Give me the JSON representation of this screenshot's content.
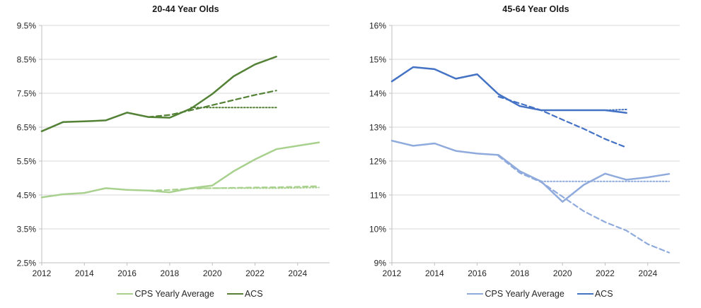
{
  "chart_data": [
    {
      "type": "line",
      "title": "20-44 Year Olds",
      "ylim": [
        2.5,
        9.5
      ],
      "xlim": [
        2012,
        2025.5
      ],
      "grid": true,
      "legend_position": "bottom",
      "y_ticks": [
        {
          "value": 9.5,
          "label": "9.5%"
        },
        {
          "value": 8.5,
          "label": "8.5%"
        },
        {
          "value": 7.5,
          "label": "7.5%"
        },
        {
          "value": 6.5,
          "label": "6.5%"
        },
        {
          "value": 5.5,
          "label": "5.5%"
        },
        {
          "value": 4.5,
          "label": "4.5%"
        },
        {
          "value": 3.5,
          "label": "3.5%"
        },
        {
          "value": 2.5,
          "label": "2.5%"
        }
      ],
      "x_ticks": [
        {
          "value": 2012,
          "label": "2012"
        },
        {
          "value": 2014,
          "label": "2014"
        },
        {
          "value": 2016,
          "label": "2016"
        },
        {
          "value": 2018,
          "label": "2018"
        },
        {
          "value": 2020,
          "label": "2020"
        },
        {
          "value": 2022,
          "label": "2022"
        },
        {
          "value": 2024,
          "label": "2024"
        }
      ],
      "series": [
        {
          "id": "cps-dotted-flat",
          "style": "dotted",
          "color": "#a9d18e",
          "x": [
            2019,
            2020,
            2021,
            2022,
            2023,
            2024,
            2025
          ],
          "y": [
            4.7,
            4.7,
            4.7,
            4.7,
            4.7,
            4.71,
            4.72
          ]
        },
        {
          "id": "cps-dashed-trend",
          "style": "dashed",
          "color": "#a9d18e",
          "x": [
            2017,
            2018,
            2019,
            2020,
            2021,
            2022,
            2023,
            2024,
            2025
          ],
          "y": [
            4.63,
            4.65,
            4.69,
            4.7,
            4.71,
            4.72,
            4.73,
            4.74,
            4.76
          ]
        },
        {
          "id": "cps-yearly-average",
          "label": "CPS Yearly Average",
          "style": "solid",
          "color": "#a9d18e",
          "x": [
            2012,
            2013,
            2014,
            2015,
            2016,
            2017,
            2018,
            2019,
            2020,
            2021,
            2022,
            2023,
            2024,
            2025
          ],
          "y": [
            4.43,
            4.52,
            4.56,
            4.7,
            4.65,
            4.63,
            4.58,
            4.7,
            4.78,
            5.2,
            5.55,
            5.85,
            5.95,
            6.05
          ]
        },
        {
          "id": "acs-dotted-flat",
          "style": "dotted",
          "color": "#538135",
          "x": [
            2019,
            2020,
            2021,
            2022,
            2023
          ],
          "y": [
            7.08,
            7.08,
            7.08,
            7.08,
            7.08
          ]
        },
        {
          "id": "acs-dashed-trend",
          "style": "dashed",
          "color": "#538135",
          "x": [
            2017,
            2018,
            2019,
            2020,
            2021,
            2022,
            2023
          ],
          "y": [
            6.8,
            6.86,
            7.0,
            7.15,
            7.3,
            7.45,
            7.58
          ]
        },
        {
          "id": "acs",
          "label": "ACS",
          "style": "solid",
          "color": "#538135",
          "x": [
            2012,
            2013,
            2014,
            2015,
            2016,
            2017,
            2018,
            2019,
            2020,
            2021,
            2022,
            2023
          ],
          "y": [
            6.38,
            6.65,
            6.67,
            6.7,
            6.93,
            6.8,
            6.78,
            7.05,
            7.48,
            8.0,
            8.35,
            8.58
          ]
        }
      ],
      "legend": [
        {
          "label": "CPS Yearly Average",
          "color": "#a9d18e"
        },
        {
          "label": "ACS",
          "color": "#538135"
        }
      ]
    },
    {
      "type": "line",
      "title": "45-64 Year Olds",
      "ylim": [
        9,
        16
      ],
      "xlim": [
        2012,
        2025.5
      ],
      "grid": true,
      "legend_position": "bottom",
      "y_ticks": [
        {
          "value": 16,
          "label": "16%"
        },
        {
          "value": 15,
          "label": "15%"
        },
        {
          "value": 14,
          "label": "14%"
        },
        {
          "value": 13,
          "label": "13%"
        },
        {
          "value": 12,
          "label": "12%"
        },
        {
          "value": 11,
          "label": "11%"
        },
        {
          "value": 10,
          "label": "10%"
        },
        {
          "value": 9,
          "label": "9%"
        }
      ],
      "x_ticks": [
        {
          "value": 2012,
          "label": "2012"
        },
        {
          "value": 2014,
          "label": "2014"
        },
        {
          "value": 2016,
          "label": "2016"
        },
        {
          "value": 2018,
          "label": "2018"
        },
        {
          "value": 2020,
          "label": "2020"
        },
        {
          "value": 2022,
          "label": "2022"
        },
        {
          "value": 2024,
          "label": "2024"
        }
      ],
      "series": [
        {
          "id": "cps-dotted-flat",
          "style": "dotted",
          "color": "#8faadc",
          "x": [
            2019,
            2020,
            2021,
            2022,
            2023,
            2024,
            2025
          ],
          "y": [
            11.4,
            11.4,
            11.4,
            11.4,
            11.4,
            11.4,
            11.4
          ]
        },
        {
          "id": "cps-dashed-trend",
          "style": "dashed",
          "color": "#8faadc",
          "x": [
            2017,
            2018,
            2019,
            2020,
            2021,
            2022,
            2023,
            2024,
            2025
          ],
          "y": [
            12.15,
            11.65,
            11.38,
            10.95,
            10.52,
            10.2,
            9.95,
            9.55,
            9.3
          ]
        },
        {
          "id": "cps-yearly-average",
          "label": "CPS Yearly Average",
          "style": "solid",
          "color": "#8faadc",
          "x": [
            2012,
            2013,
            2014,
            2015,
            2016,
            2017,
            2018,
            2019,
            2020,
            2021,
            2022,
            2023,
            2024,
            2025
          ],
          "y": [
            12.6,
            12.45,
            12.52,
            12.3,
            12.22,
            12.18,
            11.7,
            11.4,
            10.8,
            11.3,
            11.63,
            11.45,
            11.52,
            11.62
          ]
        },
        {
          "id": "acs-dotted-flat",
          "style": "dotted",
          "color": "#4472c4",
          "x": [
            2019,
            2020,
            2021,
            2022,
            2023
          ],
          "y": [
            13.5,
            13.5,
            13.5,
            13.5,
            13.52
          ]
        },
        {
          "id": "acs-dashed-trend",
          "style": "dashed",
          "color": "#4472c4",
          "x": [
            2017,
            2018,
            2019,
            2020,
            2021,
            2022,
            2023
          ],
          "y": [
            13.9,
            13.7,
            13.5,
            13.22,
            12.95,
            12.65,
            12.4
          ]
        },
        {
          "id": "acs",
          "label": "ACS",
          "style": "solid",
          "color": "#4472c4",
          "x": [
            2012,
            2013,
            2014,
            2015,
            2016,
            2017,
            2018,
            2019,
            2020,
            2021,
            2022,
            2023
          ],
          "y": [
            14.35,
            14.77,
            14.71,
            14.43,
            14.56,
            13.97,
            13.62,
            13.5,
            13.5,
            13.5,
            13.5,
            13.42
          ]
        }
      ],
      "legend": [
        {
          "label": "CPS Yearly Average",
          "color": "#8faadc"
        },
        {
          "label": "ACS",
          "color": "#4472c4"
        }
      ]
    }
  ],
  "style_colors": {
    "gridline": "#d9d9d9",
    "axis_line": "#bfbfbf",
    "tick_text": "#262626",
    "title_text": "#1a1a1a"
  }
}
